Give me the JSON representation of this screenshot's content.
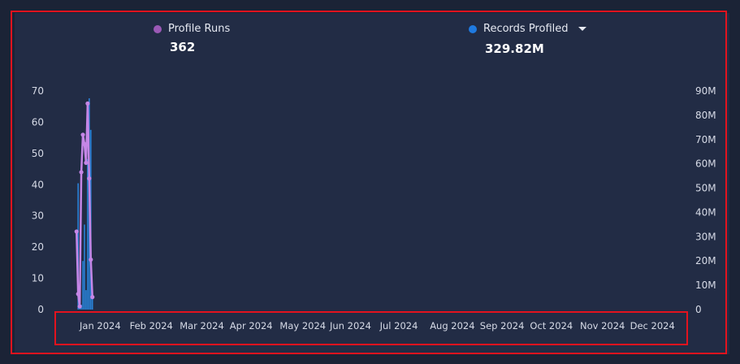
{
  "metrics": {
    "profile_runs": {
      "label": "Profile Runs",
      "value": "362",
      "color": "#9b59b6"
    },
    "records_profiled": {
      "label": "Records Profiled",
      "value": "329.82M",
      "color": "#1f7ae0"
    }
  },
  "chart_data": {
    "type": "line",
    "x_tick_labels": [
      "Jan 2024",
      "Feb 2024",
      "Mar 2024",
      "Apr 2024",
      "May 2024",
      "Jun 2024",
      "Jul 2024",
      "Aug 2024",
      "Sep 2024",
      "Oct 2024",
      "Nov 2024",
      "Dec 2024"
    ],
    "y_left": {
      "ticks": [
        "0",
        "10",
        "20",
        "30",
        "40",
        "50",
        "60",
        "70"
      ],
      "range": [
        0,
        70
      ]
    },
    "y_right": {
      "ticks": [
        "0",
        "10M",
        "20M",
        "30M",
        "40M",
        "50M",
        "60M",
        "70M",
        "80M",
        "90M"
      ],
      "range": [
        0,
        90000000
      ]
    },
    "grid": false,
    "legend_position": "top",
    "series": [
      {
        "name": "Profile Runs",
        "type": "line",
        "axis": "left",
        "color": "#9b59b6",
        "points": [
          {
            "x": "2023-12-27",
            "y": 25
          },
          {
            "x": "2023-12-28",
            "y": 5
          },
          {
            "x": "2023-12-29",
            "y": 1
          },
          {
            "x": "2023-12-30",
            "y": 44
          },
          {
            "x": "2023-12-31",
            "y": 56
          },
          {
            "x": "2024-01-01",
            "y": 53
          },
          {
            "x": "2024-01-02",
            "y": 47
          },
          {
            "x": "2024-01-03",
            "y": 66
          },
          {
            "x": "2024-01-04",
            "y": 42
          },
          {
            "x": "2024-01-05",
            "y": 16
          },
          {
            "x": "2024-01-06",
            "y": 4
          }
        ]
      },
      {
        "name": "Records Profiled",
        "type": "bar",
        "axis": "right",
        "color": "#2a8be6",
        "points": [
          {
            "x": "2023-12-28",
            "y": 52000000
          },
          {
            "x": "2023-12-29",
            "y": 4000000
          },
          {
            "x": "2023-12-30",
            "y": 2000000
          },
          {
            "x": "2023-12-31",
            "y": 20000000
          },
          {
            "x": "2024-01-01",
            "y": 35000000
          },
          {
            "x": "2024-01-02",
            "y": 8000000
          },
          {
            "x": "2024-01-03",
            "y": 62000000
          },
          {
            "x": "2024-01-04",
            "y": 87000000
          },
          {
            "x": "2024-01-05",
            "y": 74000000
          },
          {
            "x": "2024-01-06",
            "y": 6000000
          }
        ]
      }
    ]
  }
}
